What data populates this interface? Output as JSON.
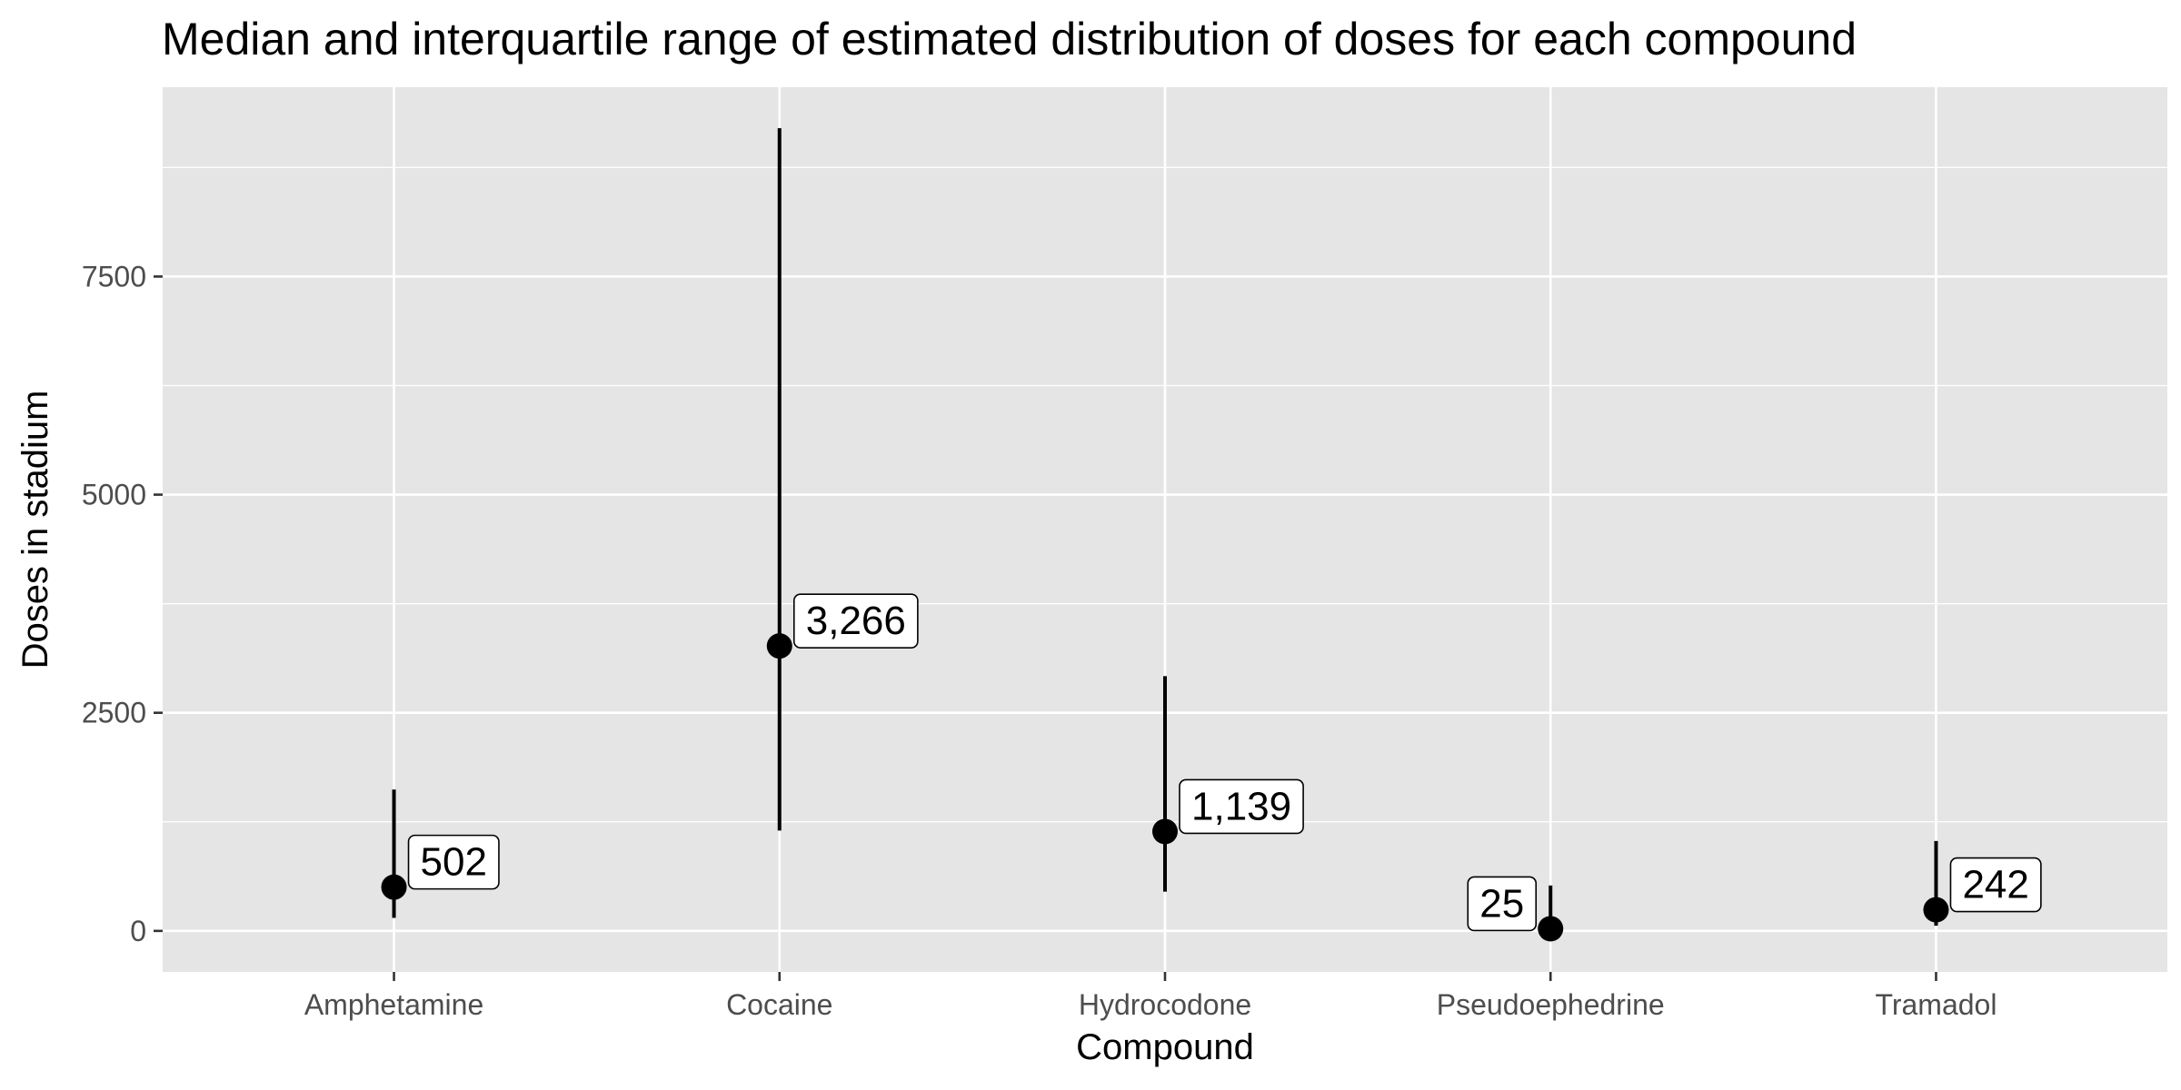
{
  "chart_data": {
    "type": "scatter",
    "title": "Median and interquartile range of estimated distribution of doses for each compound",
    "xlabel": "Compound",
    "ylabel": "Doses in stadium",
    "categories": [
      "Amphetamine",
      "Cocaine",
      "Hydrocodone",
      "Pseudoephedrine",
      "Tramadol"
    ],
    "median": [
      502,
      3266,
      1139,
      25,
      242
    ],
    "iqr_low": [
      150,
      1150,
      450,
      0,
      60
    ],
    "iqr_high": [
      1620,
      9200,
      2920,
      520,
      1030
    ],
    "labels": [
      "502",
      "3,266",
      "1,139",
      "25",
      "242"
    ],
    "label_side": [
      "right",
      "right",
      "right",
      "left",
      "right"
    ],
    "y_ticks": [
      0,
      2500,
      5000,
      7500
    ],
    "ylim": [
      -470,
      9670
    ],
    "grid": true,
    "colors": {
      "panel": "#e5e5e5",
      "grid": "#ffffff",
      "point": "#000000",
      "tick": "#333333"
    }
  }
}
